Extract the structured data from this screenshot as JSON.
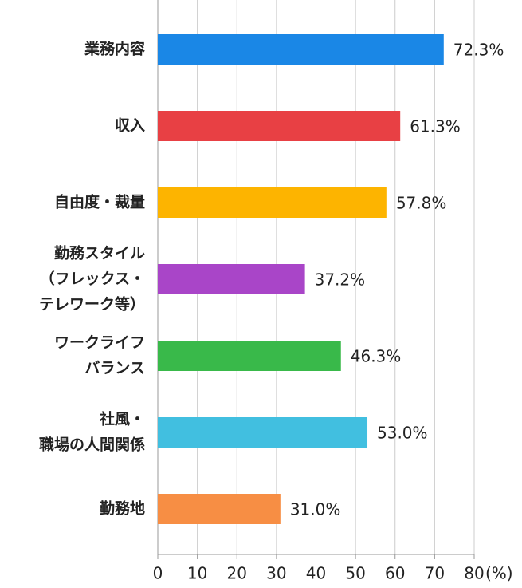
{
  "chart_data": {
    "type": "bar",
    "orientation": "horizontal",
    "categories": [
      [
        "業務内容"
      ],
      [
        "収入"
      ],
      [
        "自由度・裁量"
      ],
      [
        "勤務スタイル",
        "（フレックス・",
        "テレワーク等）"
      ],
      [
        "ワークライフ",
        "バランス"
      ],
      [
        "社風・",
        "職場の人間関係"
      ],
      [
        "勤務地"
      ]
    ],
    "values": [
      72.3,
      61.3,
      57.8,
      37.2,
      46.3,
      53.0,
      31.0
    ],
    "value_labels": [
      "72.3%",
      "61.3%",
      "57.8%",
      "37.2%",
      "46.3%",
      "53.0%",
      "31.0%"
    ],
    "colors": [
      "#1a87e6",
      "#e84044",
      "#fdb400",
      "#a945c8",
      "#39b94a",
      "#41bfe0",
      "#f78e44"
    ],
    "xlim": [
      0,
      80
    ],
    "xticks": [
      0,
      10,
      20,
      30,
      40,
      50,
      60,
      70,
      80
    ],
    "x_label": "(%)",
    "grid": true
  }
}
